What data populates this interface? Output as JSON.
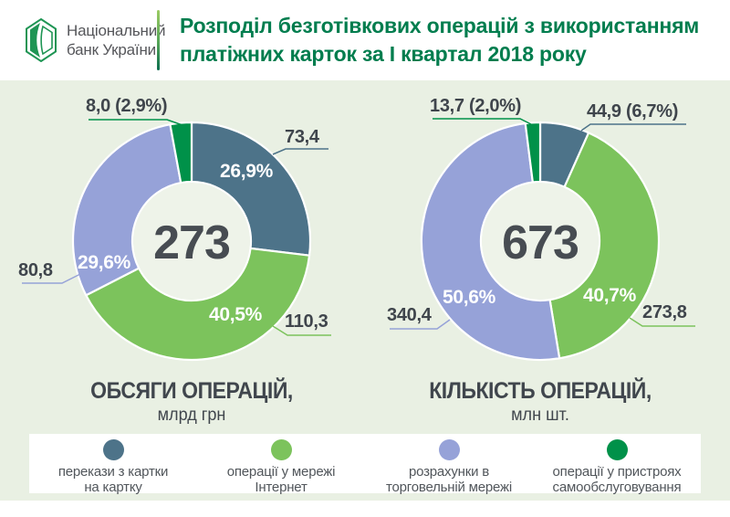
{
  "header": {
    "logo_line1": "Національний",
    "logo_line2": "банк України",
    "title": "Розподіл безготівкових операцій з використанням\nплатіжних карток за І квартал 2018 року"
  },
  "colors": {
    "slate": "#4d7389",
    "green": "#7cc35c",
    "purple": "#96a2d8",
    "dark_green": "#009149",
    "title_green": "#007d4e",
    "background": "#e9f0e3",
    "hole": "#eef3e9",
    "text_dark": "#40464d"
  },
  "chart_data": [
    {
      "type": "pie",
      "donut": true,
      "title": "ОБСЯГИ ОПЕРАЦІЙ,",
      "subtitle": "млрд грн",
      "center_total": "273",
      "units": "млрд грн",
      "segments": [
        {
          "label": "перекази з картки на картку",
          "value": 73.4,
          "pct": 26.9,
          "color_key": "slate",
          "value_label": "73,4",
          "pct_label": "26,9%"
        },
        {
          "label": "операції у мережі Інтернет",
          "value": 110.3,
          "pct": 40.5,
          "color_key": "green",
          "value_label": "110,3",
          "pct_label": "40,5%"
        },
        {
          "label": "розрахунки в торговельній мережі",
          "value": 80.8,
          "pct": 29.6,
          "color_key": "purple",
          "value_label": "80,8",
          "pct_label": "29,6%"
        },
        {
          "label": "операції у пристроях самообслуговування",
          "value": 8.0,
          "pct": 2.9,
          "color_key": "dark_green",
          "value_label": "8,0 (2,9%)",
          "pct_label": "2,9%"
        }
      ]
    },
    {
      "type": "pie",
      "donut": true,
      "title": "КІЛЬКІСТЬ ОПЕРАЦІЙ,",
      "subtitle": "млн шт.",
      "center_total": "673",
      "units": "млн шт.",
      "segments": [
        {
          "label": "перекази з картки на картку",
          "value": 44.9,
          "pct": 6.7,
          "color_key": "slate",
          "value_label": "44,9 (6,7%)",
          "pct_label": "6,7%"
        },
        {
          "label": "операції у мережі Інтернет",
          "value": 273.8,
          "pct": 40.7,
          "color_key": "green",
          "value_label": "273,8",
          "pct_label": "40,7%"
        },
        {
          "label": "розрахунки в торговельній мережі",
          "value": 340.4,
          "pct": 50.6,
          "color_key": "purple",
          "value_label": "340,4",
          "pct_label": "50,6%"
        },
        {
          "label": "операції у пристроях самообслуговування",
          "value": 13.7,
          "pct": 2.0,
          "color_key": "dark_green",
          "value_label": "13,7 (2,0%)",
          "pct_label": "2,0%"
        }
      ]
    }
  ],
  "legend": {
    "items": [
      {
        "label": "перекази з картки\nна картку",
        "color_key": "slate"
      },
      {
        "label": "операції у мережі\nІнтернет",
        "color_key": "green"
      },
      {
        "label": "розрахунки в\nторговельній мережі",
        "color_key": "purple"
      },
      {
        "label": "операції у пристроях\nсамообслуговування",
        "color_key": "dark_green"
      }
    ]
  }
}
